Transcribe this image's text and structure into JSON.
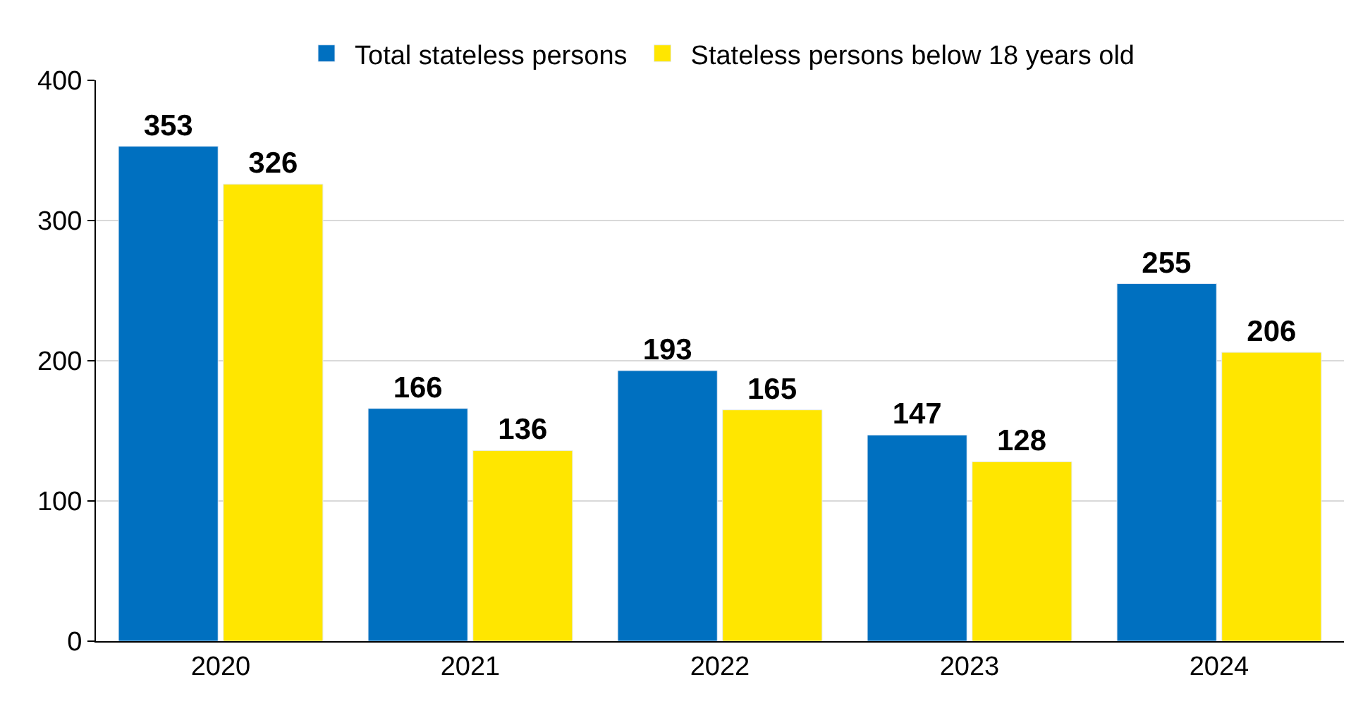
{
  "chart_data": {
    "type": "bar",
    "categories": [
      "2020",
      "2021",
      "2022",
      "2023",
      "2024"
    ],
    "series": [
      {
        "name": "Total stateless persons",
        "color": "#0070c0",
        "values": [
          353,
          166,
          193,
          147,
          255
        ]
      },
      {
        "name": "Stateless persons below 18 years old",
        "color": "#ffe600",
        "values": [
          326,
          136,
          165,
          128,
          206
        ]
      }
    ],
    "ylim": [
      0,
      400
    ],
    "yticks": [
      0,
      100,
      200,
      300,
      400
    ],
    "grid": "y",
    "legend": "top",
    "data_labels": true
  }
}
